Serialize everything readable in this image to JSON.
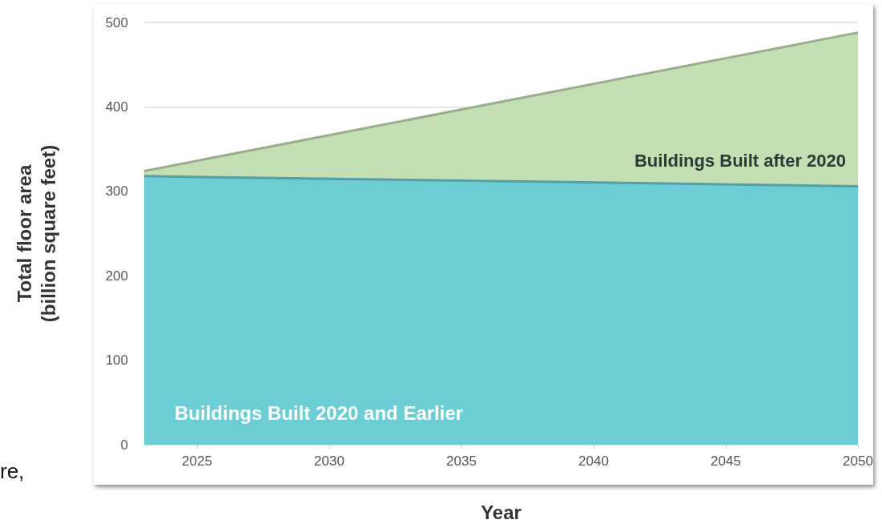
{
  "chart_data": {
    "type": "area",
    "stacked": true,
    "xlabel": "Year",
    "ylabel": "Total floor area\n(billion square feet)",
    "x": [
      2023,
      2050
    ],
    "series": [
      {
        "name": "Buildings Built 2020 and Earlier",
        "color": "#6ccdd4",
        "values": [
          318,
          306
        ]
      },
      {
        "name": "Buildings Built after 2020",
        "color": "#c5dfb4",
        "values": [
          6,
          182
        ]
      }
    ],
    "xlim": [
      2023,
      2050
    ],
    "xticks": [
      2025,
      2030,
      2035,
      2040,
      2045,
      2050
    ],
    "ylim": [
      0,
      500
    ],
    "yticks": [
      0,
      100,
      200,
      300,
      400,
      500
    ],
    "grid": "y",
    "legend": false,
    "annotations": [
      "re,"
    ]
  }
}
